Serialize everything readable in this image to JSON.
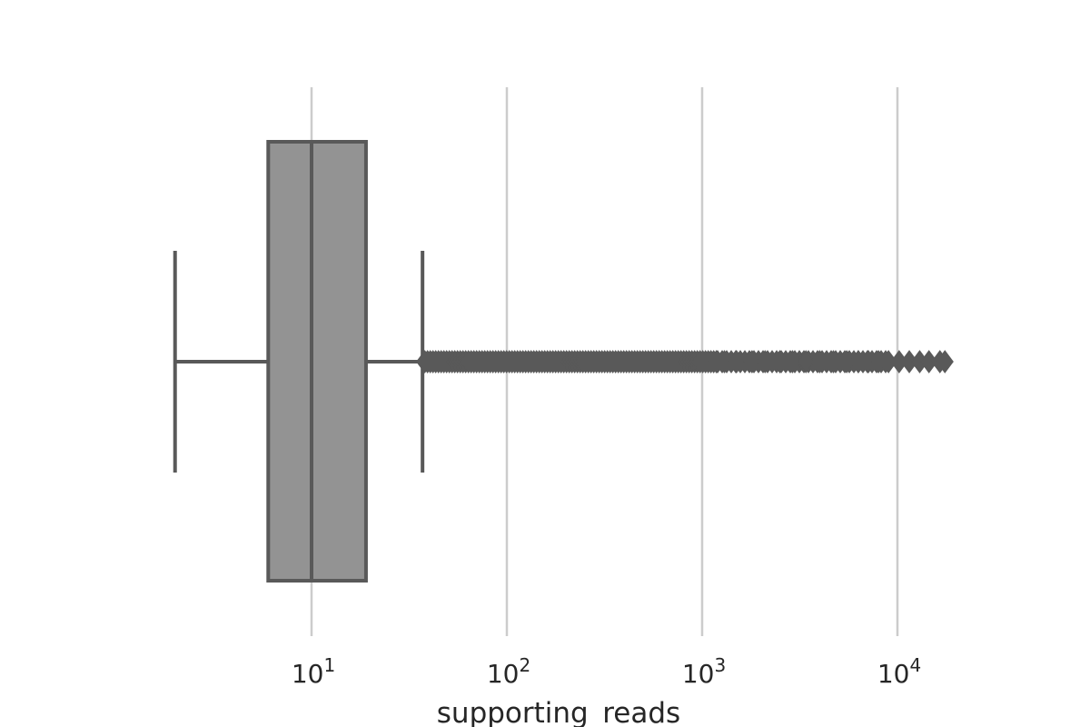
{
  "chart_data": {
    "type": "box",
    "orientation": "horizontal",
    "xscale": "log",
    "xlim": [
      1.5,
      22000
    ],
    "xlabel": "supporting_reads",
    "grid": "vertical",
    "xticks": [
      {
        "value": 10,
        "base": "10",
        "exp": "1"
      },
      {
        "value": 100,
        "base": "10",
        "exp": "2"
      },
      {
        "value": 1000,
        "base": "10",
        "exp": "3"
      },
      {
        "value": 10000,
        "base": "10",
        "exp": "4"
      }
    ],
    "box": {
      "whisker_low": 2,
      "q1": 6,
      "median": 10,
      "q3": 19,
      "whisker_high": 37
    },
    "outliers": {
      "min": 38,
      "max": 17500,
      "dense_until": 1200,
      "sparse_values": [
        1300,
        1500,
        1800,
        2100,
        2500,
        2900,
        3400,
        4000,
        4700,
        5500,
        6300,
        7100,
        8000,
        9000,
        10200,
        11500,
        13000,
        14500,
        16500,
        17500
      ]
    },
    "colors": {
      "box_fill": "#939393",
      "line": "#595959",
      "grid": "#cccccc",
      "text": "#262626",
      "background": "#ffffff"
    }
  }
}
